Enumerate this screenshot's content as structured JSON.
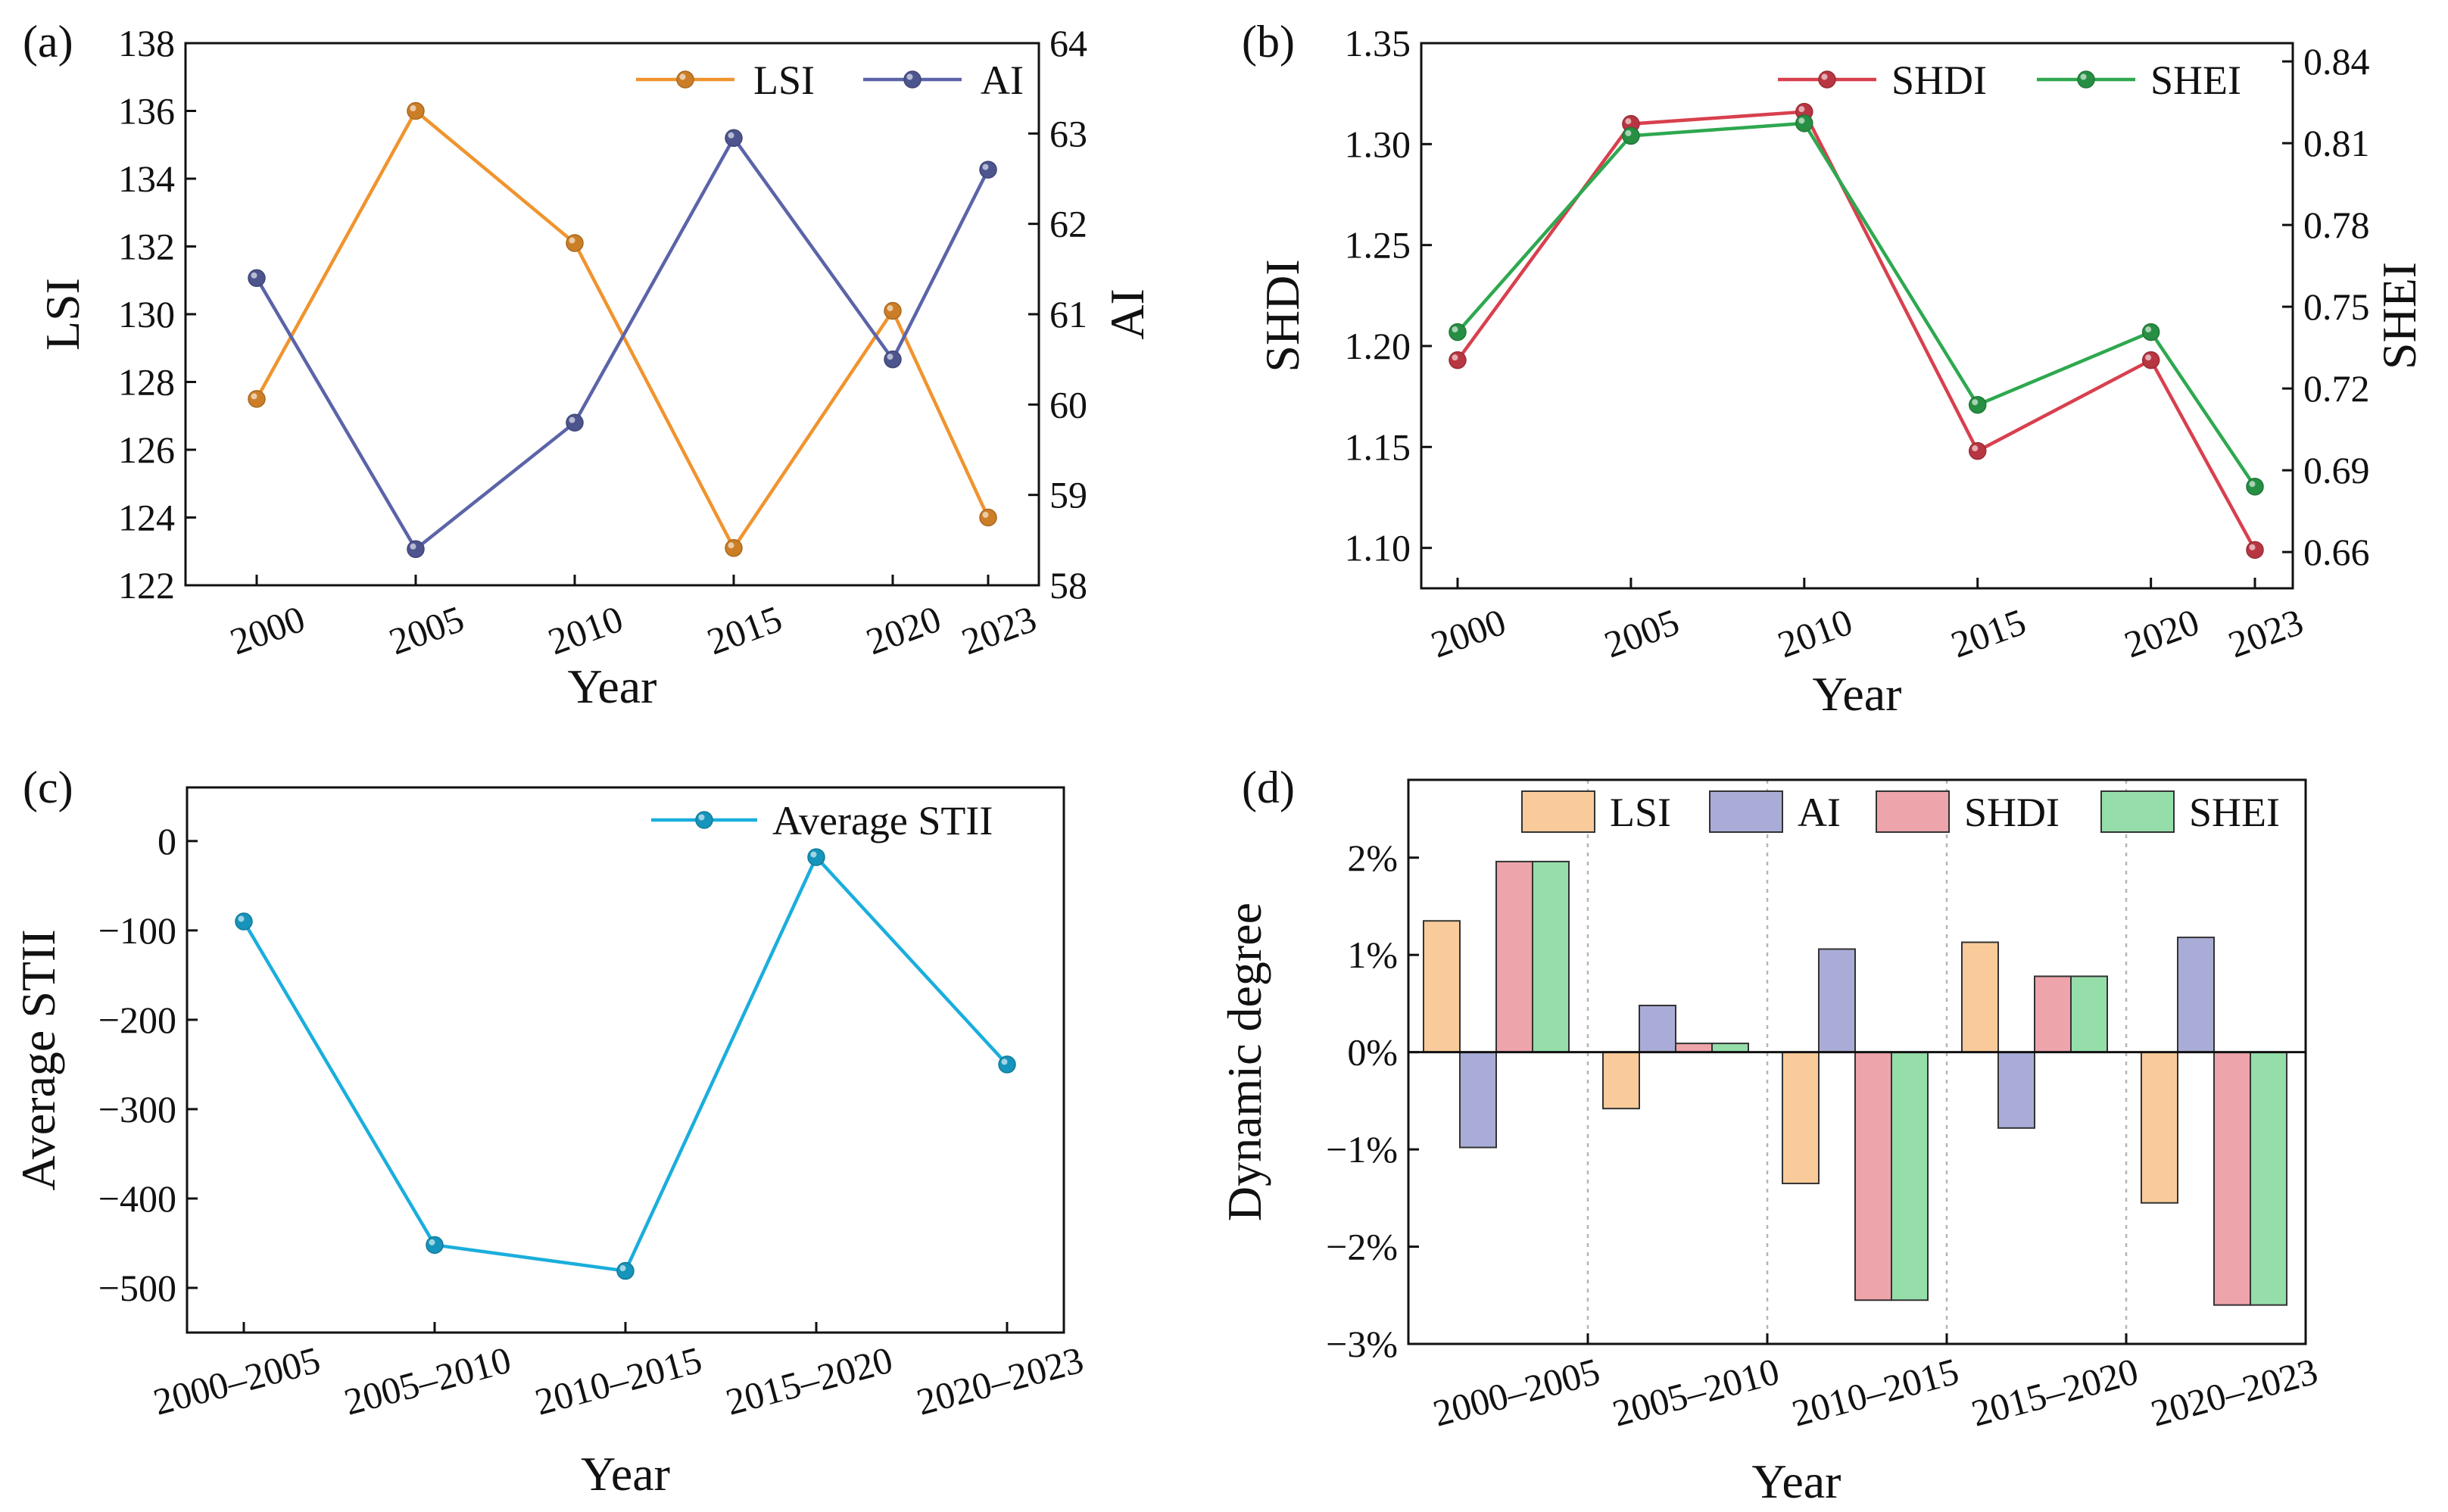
{
  "figure": {
    "panels": [
      "(a)",
      "(b)",
      "(c)",
      "(d)"
    ]
  },
  "chart_data": [
    {
      "panel": "(a)",
      "type": "line",
      "xlabel": "Year",
      "ylabel": "LSI",
      "y2label": "AI",
      "categories": [
        "2000",
        "2005",
        "2010",
        "2015",
        "2020",
        "2023"
      ],
      "x": [
        2000,
        2005,
        2010,
        2015,
        2020,
        2023
      ],
      "xlim": [
        1999,
        2024
      ],
      "ylim": [
        122,
        138
      ],
      "y_ticks": [
        122,
        124,
        126,
        128,
        130,
        132,
        134,
        136,
        138
      ],
      "y2lim": [
        58,
        64
      ],
      "y2_ticks": [
        58,
        59,
        60,
        61,
        62,
        63,
        64
      ],
      "legend": "top-right",
      "series": [
        {
          "name": "LSI",
          "axis": "left",
          "color": "#f0942e",
          "values": [
            127.5,
            136.0,
            132.1,
            123.1,
            130.1,
            124.0
          ]
        },
        {
          "name": "AI",
          "axis": "right",
          "color": "#5b64a8",
          "values": [
            61.4,
            58.4,
            59.8,
            62.95,
            60.5,
            62.6
          ]
        }
      ]
    },
    {
      "panel": "(b)",
      "type": "line",
      "xlabel": "Year",
      "ylabel": "SHDI",
      "y2label": "SHEI",
      "categories": [
        "2000",
        "2005",
        "2010",
        "2015",
        "2020",
        "2023"
      ],
      "x": [
        2000,
        2005,
        2010,
        2015,
        2020,
        2023
      ],
      "xlim": [
        1999,
        2024
      ],
      "ylim": [
        1.08,
        1.35
      ],
      "y_ticks": [
        "1.10",
        "1.15",
        "1.20",
        "1.25",
        "1.30",
        "1.35"
      ],
      "y2lim": [
        0.6467,
        0.8467
      ],
      "y2_ticks": [
        "0.66",
        "0.69",
        "0.72",
        "0.75",
        "0.78",
        "0.81",
        "0.84"
      ],
      "legend": "top-right",
      "series": [
        {
          "name": "SHDI",
          "axis": "left",
          "color": "#d8404e",
          "values": [
            1.193,
            1.31,
            1.316,
            1.148,
            1.193,
            1.099
          ]
        },
        {
          "name": "SHEI",
          "axis": "right",
          "color": "#2ea84f",
          "values": [
            0.7407,
            0.8127,
            0.8173,
            0.714,
            0.7407,
            0.684
          ]
        }
      ]
    },
    {
      "panel": "(c)",
      "type": "line",
      "xlabel": "Year",
      "ylabel": "Average STII",
      "categories": [
        "2000–2005",
        "2005–2010",
        "2010–2015",
        "2015–2020",
        "2020–2023"
      ],
      "ylim": [
        -550,
        60
      ],
      "y_ticks": [
        0,
        -100,
        -200,
        -300,
        -400,
        -500
      ],
      "y_tick_labels": [
        "0",
        "−100",
        "−200",
        "−300",
        "−400",
        "−500"
      ],
      "legend": "top-right",
      "series": [
        {
          "name": "Average STII",
          "color": "#1aaedc",
          "values": [
            -90,
            -452,
            -481,
            -18,
            -250
          ]
        }
      ]
    },
    {
      "panel": "(d)",
      "type": "bar",
      "xlabel": "Year",
      "ylabel": "Dynamic degree",
      "categories": [
        "2000–2005",
        "2005–2010",
        "2010–2015",
        "2015–2020",
        "2020–2023"
      ],
      "ylim": [
        -3,
        2.8
      ],
      "y_ticks": [
        2,
        1,
        0,
        -1,
        -2,
        -3
      ],
      "y_tick_labels": [
        "2%",
        "1%",
        "0%",
        "−1%",
        "−2%",
        "−3%"
      ],
      "unit": "%",
      "legend": "top",
      "series": [
        {
          "name": "LSI",
          "color": "#f9cb9a",
          "values": [
            1.35,
            -0.58,
            -1.35,
            1.13,
            -1.55
          ]
        },
        {
          "name": "AI",
          "color": "#a9acd6",
          "values": [
            -0.98,
            0.48,
            1.06,
            -0.78,
            1.18
          ]
        },
        {
          "name": "SHDI",
          "color": "#eda4aa",
          "values": [
            1.96,
            0.09,
            -2.55,
            0.78,
            -2.6
          ]
        },
        {
          "name": "SHEI",
          "color": "#95deaa",
          "values": [
            1.96,
            0.09,
            -2.55,
            0.78,
            -2.6
          ]
        }
      ]
    }
  ]
}
